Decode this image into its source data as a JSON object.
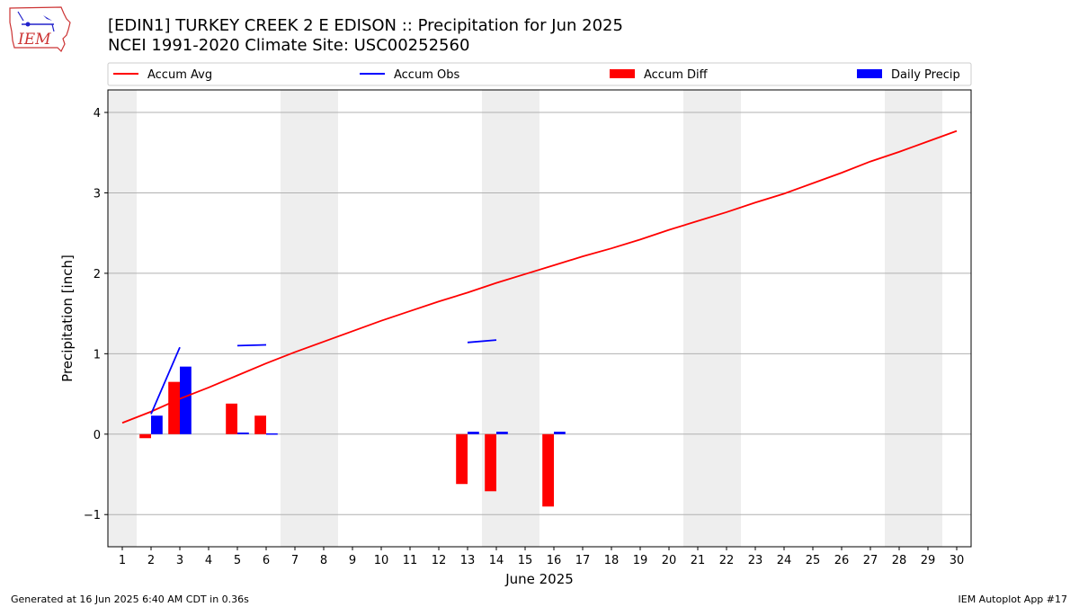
{
  "header": {
    "title_line1": "[EDIN1] TURKEY CREEK 2 E EDISON :: Precipitation for Jun 2025",
    "title_line2": "NCEI 1991-2020 Climate Site: USC00252560"
  },
  "logo": {
    "text": "IEM",
    "icon": "iem-iowa-logo-icon"
  },
  "footer": {
    "left": "Generated at 16 Jun 2025 6:40 AM CDT in 0.36s",
    "right": "IEM Autoplot App #17"
  },
  "colors": {
    "accum_avg": "#ff0000",
    "accum_obs": "#0000ff",
    "accum_diff": "#ff0000",
    "daily_precip": "#0000ff",
    "weekend_shade": "#eeeeee",
    "grid": "#b0b0b0"
  },
  "chart_data": {
    "type": "bar",
    "xlabel": "June 2025",
    "ylabel": "Precipitation [inch]",
    "xlim": [
      0.5,
      30.5
    ],
    "ylim": [
      -1.4,
      4.28
    ],
    "yticks": [
      -1,
      0,
      1,
      2,
      3,
      4
    ],
    "ytick_labels": [
      "−1",
      "0",
      "1",
      "2",
      "3",
      "4"
    ],
    "xticks": [
      1,
      2,
      3,
      4,
      5,
      6,
      7,
      8,
      9,
      10,
      11,
      12,
      13,
      14,
      15,
      16,
      17,
      18,
      19,
      20,
      21,
      22,
      23,
      24,
      25,
      26,
      27,
      28,
      29,
      30
    ],
    "grid": "horizontal",
    "legend_position": "top",
    "legend": [
      {
        "label": "Accum Avg",
        "kind": "line",
        "color": "#ff0000"
      },
      {
        "label": "Accum Obs",
        "kind": "line",
        "color": "#0000ff"
      },
      {
        "label": "Accum Diff",
        "kind": "bar",
        "color": "#ff0000"
      },
      {
        "label": "Daily Precip",
        "kind": "bar",
        "color": "#0000ff"
      }
    ],
    "weekend_days": [
      1,
      7,
      8,
      14,
      15,
      21,
      22,
      28,
      29
    ],
    "accum_avg": {
      "name": "Accum Avg",
      "x": [
        1,
        2,
        3,
        4,
        5,
        6,
        7,
        8,
        9,
        10,
        11,
        12,
        13,
        14,
        15,
        16,
        17,
        18,
        19,
        20,
        21,
        22,
        23,
        24,
        25,
        26,
        27,
        28,
        29,
        30
      ],
      "y": [
        0.14,
        0.28,
        0.44,
        0.58,
        0.73,
        0.88,
        1.02,
        1.15,
        1.28,
        1.41,
        1.53,
        1.65,
        1.76,
        1.88,
        1.99,
        2.1,
        2.21,
        2.31,
        2.42,
        2.54,
        2.65,
        2.76,
        2.88,
        2.99,
        3.12,
        3.25,
        3.39,
        3.51,
        3.64,
        3.77
      ]
    },
    "accum_obs": {
      "name": "Accum Obs",
      "segments": [
        {
          "x": [
            2,
            3
          ],
          "y": [
            0.25,
            1.08
          ]
        },
        {
          "x": [
            5,
            6
          ],
          "y": [
            1.1,
            1.11
          ]
        },
        {
          "x": [
            13,
            14
          ],
          "y": [
            1.14,
            1.17
          ]
        }
      ]
    },
    "accum_diff": {
      "name": "Accum Diff",
      "x": [
        2,
        3,
        5,
        6,
        13,
        14,
        16
      ],
      "values": [
        -0.05,
        0.65,
        0.38,
        0.23,
        -0.62,
        -0.71,
        -0.9
      ]
    },
    "daily_precip": {
      "name": "Daily Precip",
      "x": [
        2,
        3,
        5,
        6,
        13,
        14,
        16
      ],
      "values": [
        0.23,
        0.84,
        0.02,
        0.01,
        0.03,
        0.03,
        0.03
      ]
    }
  }
}
